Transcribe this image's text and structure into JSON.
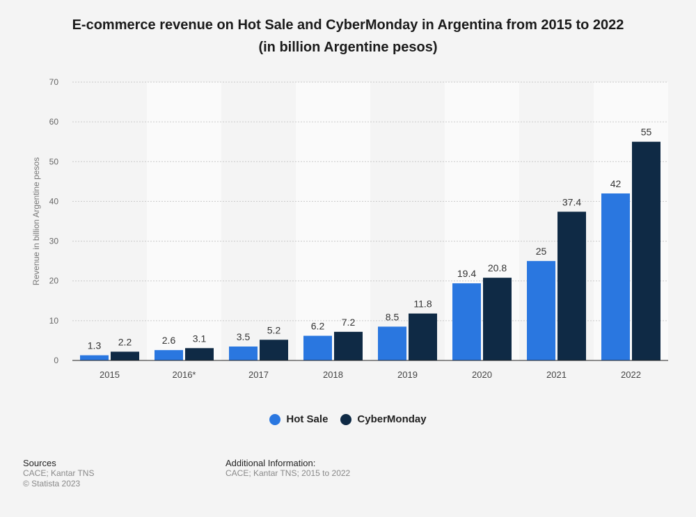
{
  "title": {
    "line1": "E-commerce revenue on Hot Sale and CyberMonday in Argentina from 2015 to 2022",
    "line2": "(in billion Argentine pesos)"
  },
  "colors": {
    "hot_sale": "#2a77e0",
    "cyber_monday": "#0f2a45",
    "band": "#fafafa"
  },
  "chart_data": {
    "type": "bar",
    "title": "E-commerce revenue on Hot Sale and CyberMonday in Argentina from 2015 to 2022 (in billion Argentine pesos)",
    "xlabel": "",
    "ylabel": "Revenue in billion Argentine pesos",
    "ylim": [
      0,
      70
    ],
    "yticks": [
      0,
      10,
      20,
      30,
      40,
      50,
      60,
      70
    ],
    "grid": true,
    "legend_position": "bottom",
    "categories": [
      "2015",
      "2016*",
      "2017",
      "2018",
      "2019",
      "2020",
      "2021",
      "2022"
    ],
    "series": [
      {
        "name": "Hot Sale",
        "values": [
          1.3,
          2.6,
          3.5,
          6.2,
          8.5,
          19.4,
          25,
          42
        ],
        "labels": [
          "1.3",
          "2.6",
          "3.5",
          "6.2",
          "8.5",
          "19.4",
          "25",
          "42"
        ]
      },
      {
        "name": "CyberMonday",
        "values": [
          2.2,
          3.1,
          5.2,
          7.2,
          11.8,
          20.8,
          37.4,
          55
        ],
        "labels": [
          "2.2",
          "3.1",
          "5.2",
          "7.2",
          "11.8",
          "20.8",
          "37.4",
          "55"
        ]
      }
    ]
  },
  "footer": {
    "sources_label": "Sources",
    "sources_text": "CACE; Kantar TNS",
    "copyright": "© Statista 2023",
    "additional_label": "Additional Information:",
    "additional_text": "CACE; Kantar TNS; 2015 to 2022"
  }
}
